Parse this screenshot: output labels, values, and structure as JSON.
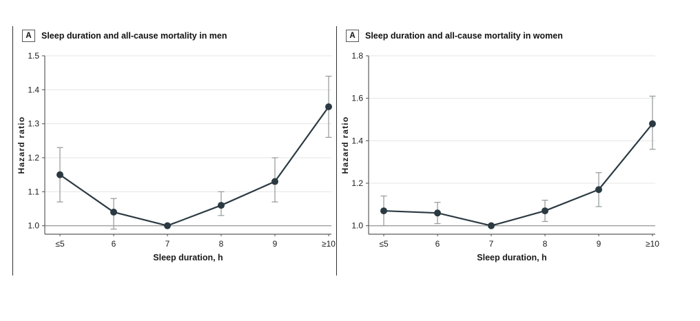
{
  "figure": {
    "panels": [
      {
        "panel_label": "A",
        "title": "Sleep duration and all-cause mortality in men"
      },
      {
        "panel_label": "A",
        "title": "Sleep duration and all-cause mortality in women"
      }
    ]
  },
  "chart_data": [
    {
      "type": "line",
      "title": "Sleep duration and all-cause mortality in men",
      "categories": [
        "≤5",
        "6",
        "7",
        "8",
        "9",
        "≥10"
      ],
      "series": [
        {
          "name": "Hazard ratio, men",
          "values": [
            1.15,
            1.04,
            1.0,
            1.06,
            1.13,
            1.35
          ],
          "ci_low": [
            1.07,
            0.99,
            null,
            1.03,
            1.07,
            1.26
          ],
          "ci_high": [
            1.23,
            1.08,
            null,
            1.1,
            1.2,
            1.44
          ]
        }
      ],
      "xlabel": "Sleep duration, h",
      "ylabel": "Hazard ratio",
      "yticks": [
        1.0,
        1.1,
        1.2,
        1.3,
        1.4,
        1.5
      ],
      "ylim": [
        0.975,
        1.5
      ],
      "reference_line": 1.0,
      "grid": true,
      "legend": false
    },
    {
      "type": "line",
      "title": "Sleep duration and all-cause mortality in women",
      "categories": [
        "≤5",
        "6",
        "7",
        "8",
        "9",
        "≥10"
      ],
      "series": [
        {
          "name": "Hazard ratio, women",
          "values": [
            1.07,
            1.06,
            1.0,
            1.07,
            1.17,
            1.48
          ],
          "ci_low": [
            1.0,
            1.01,
            null,
            1.02,
            1.09,
            1.36
          ],
          "ci_high": [
            1.14,
            1.11,
            null,
            1.12,
            1.25,
            1.61
          ]
        }
      ],
      "xlabel": "Sleep duration, h",
      "ylabel": "Hazard ratio",
      "yticks": [
        1.0,
        1.2,
        1.4,
        1.6,
        1.8
      ],
      "ylim": [
        0.96,
        1.8
      ],
      "reference_line": 1.0,
      "grid": true,
      "legend": false
    }
  ],
  "colors": {
    "series": "#2b3a42",
    "error_bar": "#999f9f",
    "gridline": "#e4e4e4",
    "reference_line": "#9e9e9e",
    "axis": "#5a5a5a",
    "text": "#1a1a1a",
    "panel_rule": "#2f2f2f"
  }
}
